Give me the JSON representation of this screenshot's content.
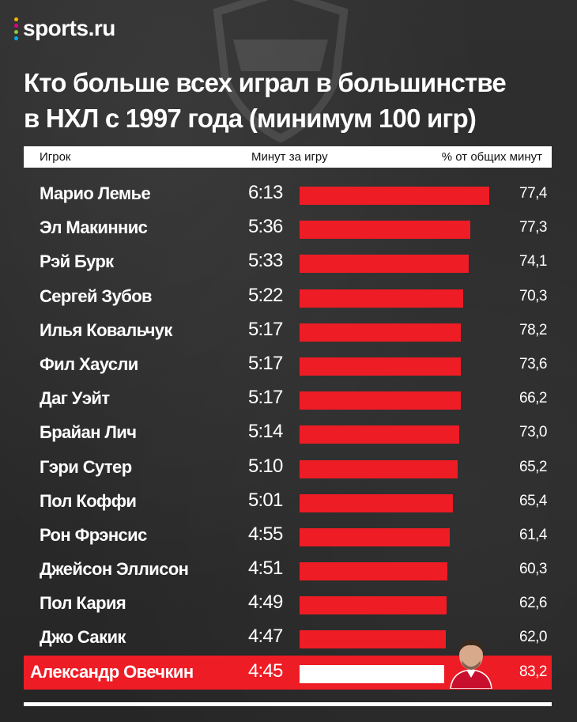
{
  "brand": {
    "name": "sports.ru",
    "dot_colors": [
      "#f7b500",
      "#e6007e",
      "#8dc63f",
      "#00aeef"
    ]
  },
  "title_lines": [
    "Кто больше всех играл в большинстве",
    "в НХЛ с 1997 года (минимум 100 игр)"
  ],
  "colors": {
    "bar": "#ee1c25",
    "highlight_row": "#ee1c25",
    "highlight_bar": "#ffffff"
  },
  "chart_data": {
    "type": "bar",
    "orientation": "horizontal",
    "columns": [
      "Игрок",
      "Минут за игру",
      "% от общих минут"
    ],
    "rows": [
      {
        "player": "Марио Лемье",
        "minutes_label": "6:13",
        "minutes": 6.217,
        "pct": "77,4"
      },
      {
        "player": "Эл Макиннис",
        "minutes_label": "5:36",
        "minutes": 5.6,
        "pct": "77,3"
      },
      {
        "player": "Рэй Бурк",
        "minutes_label": "5:33",
        "minutes": 5.55,
        "pct": "74,1"
      },
      {
        "player": "Сергей Зубов",
        "minutes_label": "5:22",
        "minutes": 5.367,
        "pct": "70,3"
      },
      {
        "player": "Илья Ковальчук",
        "minutes_label": "5:17",
        "minutes": 5.283,
        "pct": "78,2"
      },
      {
        "player": "Фил Хаусли",
        "minutes_label": "5:17",
        "minutes": 5.283,
        "pct": "73,6"
      },
      {
        "player": "Даг Уэйт",
        "minutes_label": "5:17",
        "minutes": 5.283,
        "pct": "66,2"
      },
      {
        "player": "Брайан Лич",
        "minutes_label": "5:14",
        "minutes": 5.233,
        "pct": "73,0"
      },
      {
        "player": "Гэри Сутер",
        "minutes_label": "5:10",
        "minutes": 5.167,
        "pct": "65,2"
      },
      {
        "player": "Пол Коффи",
        "minutes_label": "5:01",
        "minutes": 5.017,
        "pct": "65,4"
      },
      {
        "player": "Рон Фрэнсис",
        "minutes_label": "4:55",
        "minutes": 4.917,
        "pct": "61,4"
      },
      {
        "player": "Джейсон Эллисон",
        "minutes_label": "4:51",
        "minutes": 4.85,
        "pct": "60,3"
      },
      {
        "player": "Пол Кария",
        "minutes_label": "4:49",
        "minutes": 4.817,
        "pct": "62,6"
      },
      {
        "player": "Джо Сакик",
        "minutes_label": "4:47",
        "minutes": 4.783,
        "pct": "62,0"
      },
      {
        "player": "Александр Овечкин",
        "minutes_label": "4:45",
        "minutes": 4.75,
        "pct": "83,2",
        "highlight": true
      }
    ]
  }
}
